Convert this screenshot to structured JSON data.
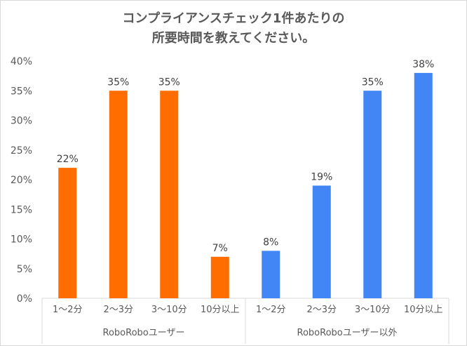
{
  "chart_data": {
    "type": "bar",
    "title": [
      "コンプライアンスチェック1件あたりの",
      "所要時間を教えてください。"
    ],
    "xlabel": "",
    "ylabel": "",
    "ylim": [
      0,
      40
    ],
    "yticks": [
      "0%",
      "5%",
      "10%",
      "15%",
      "20%",
      "25%",
      "30%",
      "35%",
      "40%"
    ],
    "grid": false,
    "groups": [
      {
        "name": "RoboRoboユーザー",
        "color": "#ff6d01",
        "categories": [
          "1～2分",
          "2～3分",
          "3～10分",
          "10分以上"
        ],
        "values": [
          22,
          35,
          35,
          7
        ],
        "labels": [
          "22%",
          "35%",
          "35%",
          "7%"
        ]
      },
      {
        "name": "RoboRoboユーザー以外",
        "color": "#4285f4",
        "categories": [
          "1～2分",
          "2～3分",
          "3～10分",
          "10分以上"
        ],
        "values": [
          8,
          19,
          35,
          38
        ],
        "labels": [
          "8%",
          "19%",
          "35%",
          "38%"
        ]
      }
    ]
  }
}
